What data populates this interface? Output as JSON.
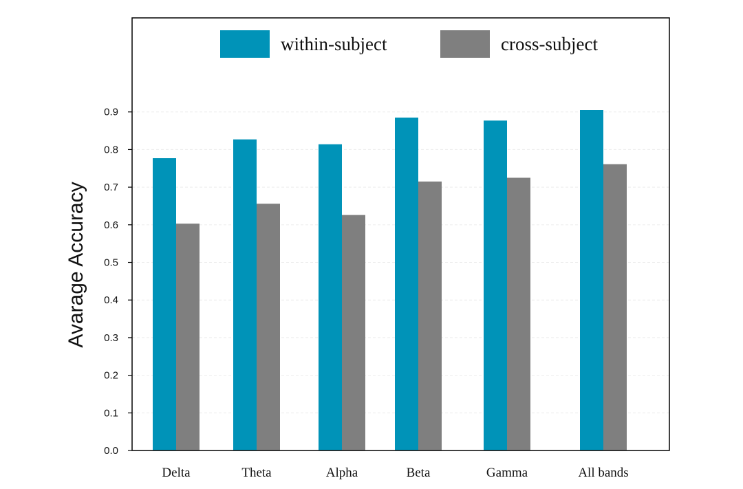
{
  "chart_data": {
    "type": "bar",
    "ylabel": "Avarage Accuracy",
    "xlabel": "",
    "categories": [
      "Delta",
      "Theta",
      "Alpha",
      "Beta",
      "Gamma",
      "All bands"
    ],
    "series": [
      {
        "name": "within-subject",
        "color": "#0093b8",
        "values": [
          0.777,
          0.827,
          0.814,
          0.885,
          0.877,
          0.905
        ]
      },
      {
        "name": "cross-subject",
        "color": "#7f7f7f",
        "values": [
          0.603,
          0.656,
          0.626,
          0.715,
          0.725,
          0.761
        ]
      }
    ],
    "ylim": [
      0,
      1.15
    ],
    "yticks": [
      "0.0",
      "0.1",
      "0.2",
      "0.3",
      "0.4",
      "0.5",
      "0.6",
      "0.7",
      "0.8",
      "0.9"
    ],
    "grid": true,
    "legend_position": "top-center"
  }
}
